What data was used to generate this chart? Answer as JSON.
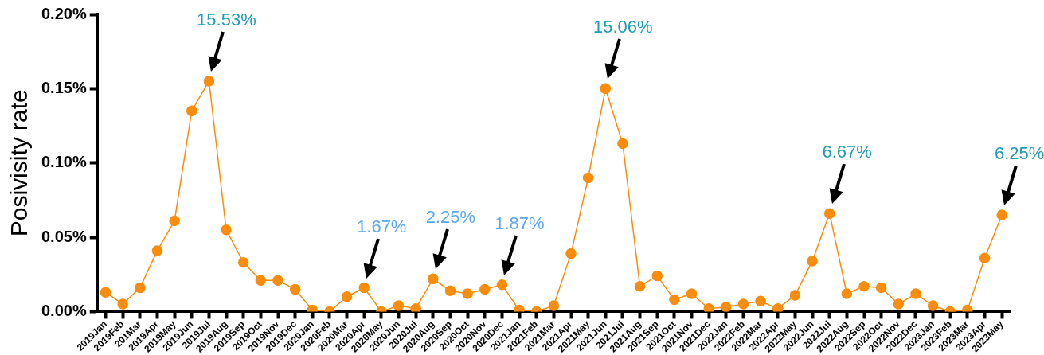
{
  "chart_data": {
    "type": "line",
    "ylabel": "Posivisity rate",
    "categories": [
      "2019Jan",
      "2019Feb",
      "201Mar",
      "2019Apr",
      "2019May",
      "2019Jun",
      "2019Jul",
      "2019Aug",
      "2019Sep",
      "2019Oct",
      "2019Nov",
      "2019Dec",
      "2020Jan",
      "2020Feb",
      "2020Mar",
      "2020Apr",
      "2020May",
      "2020Jun",
      "2020Jul",
      "2020Aug",
      "2020Sep",
      "2020Oct",
      "2020Nov",
      "2020Dec",
      "2021Jan",
      "2021Feb",
      "2021Mar",
      "2021Apr",
      "2021May",
      "2021Jun",
      "2021Jul",
      "2021Aug",
      "2021Sep",
      "2021Oct",
      "2021Nov",
      "2021Dec",
      "2022Jan",
      "2022Feb",
      "2022Mar",
      "2022Apr",
      "2022May",
      "2022Jun",
      "2022Jul",
      "2022Aug",
      "2022Sep",
      "2022Oct",
      "2022Nov",
      "2022Dec",
      "2023Jan",
      "2023Feb",
      "2023Mar",
      "2023Apr",
      "2023May"
    ],
    "series": [
      {
        "color": "#fb8c0c",
        "values": [
          0.013,
          0.005,
          0.016,
          0.041,
          0.061,
          0.135,
          0.155,
          0.055,
          0.033,
          0.021,
          0.021,
          0.015,
          0.001,
          0.0,
          0.01,
          0.016,
          0.0,
          0.004,
          0.002,
          0.022,
          0.014,
          0.012,
          0.015,
          0.018,
          0.001,
          0.0,
          0.004,
          0.039,
          0.09,
          0.15,
          0.113,
          0.017,
          0.024,
          0.008,
          0.012,
          0.002,
          0.003,
          0.005,
          0.007,
          0.002,
          0.011,
          0.034,
          0.066,
          0.012,
          0.017,
          0.016,
          0.005,
          0.012,
          0.004,
          0.0,
          0.001,
          0.036,
          0.065
        ]
      }
    ],
    "ylim": [
      0,
      0.2
    ],
    "yticks": [
      {
        "value": 0,
        "label": "0.00%"
      },
      {
        "value": 0.05,
        "label": "0.05%"
      },
      {
        "value": 0.1,
        "label": "0.10%"
      },
      {
        "value": 0.15,
        "label": "0.15%"
      },
      {
        "value": 0.2,
        "label": "0.20%"
      }
    ],
    "annotations": [
      {
        "text": "15.53%",
        "x": "2019Jul",
        "y": 0.155
      },
      {
        "text": "1.67%",
        "x": "2020Apr",
        "y": 0.016
      },
      {
        "text": "2.25%",
        "x": "2020Aug",
        "y": 0.022
      },
      {
        "text": "1.87%",
        "x": "2020Dec",
        "y": 0.018
      },
      {
        "text": "15.06%",
        "x": "2021Jun",
        "y": 0.15
      },
      {
        "text": "6.67%",
        "x": "2022Jul",
        "y": 0.066
      },
      {
        "text": "6.25%",
        "x": "2023May",
        "y": 0.065
      }
    ],
    "grid": false,
    "legend": false,
    "marker": "circle",
    "line_style": "solid"
  }
}
